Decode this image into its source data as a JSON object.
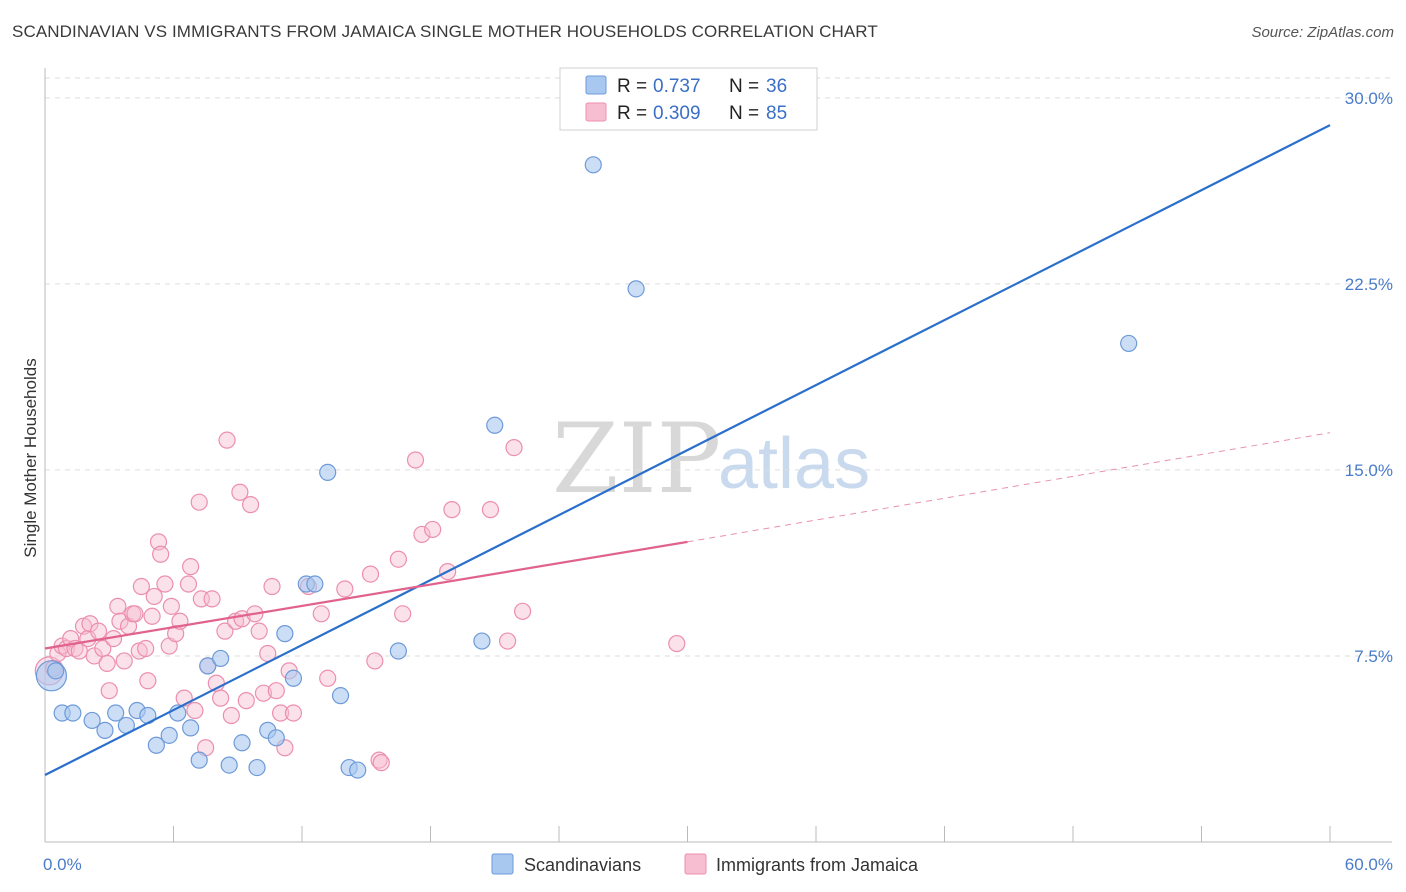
{
  "header": {
    "title": "SCANDINAVIAN VS IMMIGRANTS FROM JAMAICA SINGLE MOTHER HOUSEHOLDS CORRELATION CHART",
    "source": "Source: ZipAtlas.com"
  },
  "watermark": {
    "zip": "ZIP",
    "atlas": "atlas"
  },
  "colors": {
    "blue_fill": "#a9c8f0",
    "blue_stroke": "#6e9ad8",
    "blue_line": "#2a6fcb",
    "pink_fill": "#f7bdd0",
    "pink_stroke": "#ec8fae",
    "pink_line": "#e0628d",
    "grid": "#dddddd",
    "tick_text": "#4a7cc9"
  },
  "legend": {
    "rows": [
      {
        "r_label": "R =",
        "r_value": "0.737",
        "n_label": "N =",
        "n_value": "36"
      },
      {
        "r_label": "R =",
        "r_value": "0.309",
        "n_label": "N =",
        "n_value": "85"
      }
    ]
  },
  "chart_data": {
    "type": "scatter",
    "title": "SCANDINAVIAN VS IMMIGRANTS FROM JAMAICA SINGLE MOTHER HOUSEHOLDS CORRELATION CHART",
    "xlabel": "",
    "ylabel": "Single Mother Households",
    "xlim": [
      0,
      60
    ],
    "ylim": [
      0,
      30.8
    ],
    "x_tick_labels": [
      "0.0%",
      "60.0%"
    ],
    "y_ticks": [
      7.5,
      15.0,
      22.5,
      30.0
    ],
    "y_tick_labels": [
      "7.5%",
      "15.0%",
      "22.5%",
      "30.0%"
    ],
    "grid": "horizontal dashed",
    "legend_position": "top-center",
    "series": [
      {
        "name": "Scandinavians",
        "color": "#a9c8f0",
        "r": 0.737,
        "n": 36,
        "trend": {
          "x": [
            0,
            60
          ],
          "y": [
            2.7,
            28.9
          ]
        },
        "points": [
          {
            "x": 0.3,
            "y": 6.7,
            "big": true
          },
          {
            "x": 0.8,
            "y": 5.2
          },
          {
            "x": 1.3,
            "y": 5.2
          },
          {
            "x": 2.2,
            "y": 4.9
          },
          {
            "x": 2.8,
            "y": 4.5
          },
          {
            "x": 3.3,
            "y": 5.2
          },
          {
            "x": 3.8,
            "y": 4.7
          },
          {
            "x": 4.3,
            "y": 5.3
          },
          {
            "x": 4.8,
            "y": 5.1
          },
          {
            "x": 5.2,
            "y": 3.9
          },
          {
            "x": 5.8,
            "y": 4.3
          },
          {
            "x": 6.2,
            "y": 5.2
          },
          {
            "x": 6.8,
            "y": 4.6
          },
          {
            "x": 7.2,
            "y": 3.3
          },
          {
            "x": 7.6,
            "y": 7.1
          },
          {
            "x": 8.2,
            "y": 7.4
          },
          {
            "x": 8.6,
            "y": 3.1
          },
          {
            "x": 9.2,
            "y": 4.0
          },
          {
            "x": 9.9,
            "y": 3.0
          },
          {
            "x": 10.4,
            "y": 4.5
          },
          {
            "x": 10.8,
            "y": 4.2
          },
          {
            "x": 11.2,
            "y": 8.4
          },
          {
            "x": 11.6,
            "y": 6.6
          },
          {
            "x": 12.2,
            "y": 10.4
          },
          {
            "x": 12.6,
            "y": 10.4
          },
          {
            "x": 13.2,
            "y": 14.9
          },
          {
            "x": 13.8,
            "y": 5.9
          },
          {
            "x": 14.2,
            "y": 3.0
          },
          {
            "x": 14.6,
            "y": 2.9
          },
          {
            "x": 16.5,
            "y": 7.7
          },
          {
            "x": 20.4,
            "y": 8.1
          },
          {
            "x": 21.0,
            "y": 16.8
          },
          {
            "x": 25.6,
            "y": 27.3
          },
          {
            "x": 27.6,
            "y": 22.3
          },
          {
            "x": 50.6,
            "y": 20.1
          },
          {
            "x": 0.5,
            "y": 6.9
          }
        ]
      },
      {
        "name": "Immigrants from Jamaica",
        "color": "#f7bdd0",
        "r": 0.309,
        "n": 85,
        "trend": {
          "x": [
            0,
            30
          ],
          "y": [
            7.8,
            12.1
          ]
        },
        "trend_extension": {
          "x": [
            30,
            60
          ],
          "y": [
            12.1,
            16.5
          ]
        },
        "points": [
          {
            "x": 0.2,
            "y": 6.9,
            "big": true
          },
          {
            "x": 0.4,
            "y": 7.0
          },
          {
            "x": 0.6,
            "y": 7.6
          },
          {
            "x": 0.8,
            "y": 7.9
          },
          {
            "x": 1.0,
            "y": 7.8
          },
          {
            "x": 1.2,
            "y": 8.2
          },
          {
            "x": 1.4,
            "y": 7.8
          },
          {
            "x": 1.6,
            "y": 7.7
          },
          {
            "x": 1.8,
            "y": 8.7
          },
          {
            "x": 2.0,
            "y": 8.2
          },
          {
            "x": 2.1,
            "y": 8.8
          },
          {
            "x": 2.3,
            "y": 7.5
          },
          {
            "x": 2.5,
            "y": 8.5
          },
          {
            "x": 2.7,
            "y": 7.8
          },
          {
            "x": 2.9,
            "y": 7.2
          },
          {
            "x": 3.0,
            "y": 6.1
          },
          {
            "x": 3.2,
            "y": 8.2
          },
          {
            "x": 3.4,
            "y": 9.5
          },
          {
            "x": 3.5,
            "y": 8.9
          },
          {
            "x": 3.7,
            "y": 7.3
          },
          {
            "x": 3.9,
            "y": 8.7
          },
          {
            "x": 4.1,
            "y": 9.2
          },
          {
            "x": 4.2,
            "y": 9.2
          },
          {
            "x": 4.4,
            "y": 7.7
          },
          {
            "x": 4.5,
            "y": 10.3
          },
          {
            "x": 4.7,
            "y": 7.8
          },
          {
            "x": 4.8,
            "y": 6.5
          },
          {
            "x": 5.0,
            "y": 9.1
          },
          {
            "x": 5.1,
            "y": 9.9
          },
          {
            "x": 5.3,
            "y": 12.1
          },
          {
            "x": 5.4,
            "y": 11.6
          },
          {
            "x": 5.6,
            "y": 10.4
          },
          {
            "x": 5.8,
            "y": 7.9
          },
          {
            "x": 5.9,
            "y": 9.5
          },
          {
            "x": 6.1,
            "y": 8.4
          },
          {
            "x": 6.3,
            "y": 8.9
          },
          {
            "x": 6.5,
            "y": 5.8
          },
          {
            "x": 6.7,
            "y": 10.4
          },
          {
            "x": 6.8,
            "y": 11.1
          },
          {
            "x": 7.0,
            "y": 5.3
          },
          {
            "x": 7.2,
            "y": 13.7
          },
          {
            "x": 7.3,
            "y": 9.8
          },
          {
            "x": 7.5,
            "y": 3.8
          },
          {
            "x": 7.6,
            "y": 7.1
          },
          {
            "x": 7.8,
            "y": 9.8
          },
          {
            "x": 8.0,
            "y": 6.4
          },
          {
            "x": 8.2,
            "y": 5.8
          },
          {
            "x": 8.4,
            "y": 8.5
          },
          {
            "x": 8.5,
            "y": 16.2
          },
          {
            "x": 8.7,
            "y": 5.1
          },
          {
            "x": 8.9,
            "y": 8.9
          },
          {
            "x": 9.1,
            "y": 14.1
          },
          {
            "x": 9.2,
            "y": 9.0
          },
          {
            "x": 9.4,
            "y": 5.7
          },
          {
            "x": 9.6,
            "y": 13.6
          },
          {
            "x": 9.8,
            "y": 9.2
          },
          {
            "x": 10.0,
            "y": 8.5
          },
          {
            "x": 10.2,
            "y": 6.0
          },
          {
            "x": 10.4,
            "y": 7.6
          },
          {
            "x": 10.6,
            "y": 10.3
          },
          {
            "x": 10.8,
            "y": 6.1
          },
          {
            "x": 11.0,
            "y": 5.2
          },
          {
            "x": 11.2,
            "y": 3.8
          },
          {
            "x": 11.4,
            "y": 6.9
          },
          {
            "x": 11.6,
            "y": 5.2
          },
          {
            "x": 12.3,
            "y": 10.3
          },
          {
            "x": 12.9,
            "y": 9.2
          },
          {
            "x": 13.2,
            "y": 6.6
          },
          {
            "x": 14.0,
            "y": 10.2
          },
          {
            "x": 15.2,
            "y": 10.8
          },
          {
            "x": 15.4,
            "y": 7.3
          },
          {
            "x": 15.6,
            "y": 3.3
          },
          {
            "x": 15.7,
            "y": 3.2
          },
          {
            "x": 16.5,
            "y": 11.4
          },
          {
            "x": 16.7,
            "y": 9.2
          },
          {
            "x": 17.3,
            "y": 15.4
          },
          {
            "x": 17.6,
            "y": 12.4
          },
          {
            "x": 18.1,
            "y": 12.6
          },
          {
            "x": 18.8,
            "y": 10.9
          },
          {
            "x": 19.0,
            "y": 13.4
          },
          {
            "x": 20.8,
            "y": 13.4
          },
          {
            "x": 21.6,
            "y": 8.1
          },
          {
            "x": 21.9,
            "y": 15.9
          },
          {
            "x": 22.3,
            "y": 9.3
          },
          {
            "x": 29.5,
            "y": 8.0
          }
        ]
      }
    ]
  },
  "bottom_legend": {
    "items": [
      {
        "label": "Scandinavians"
      },
      {
        "label": "Immigrants from Jamaica"
      }
    ]
  }
}
